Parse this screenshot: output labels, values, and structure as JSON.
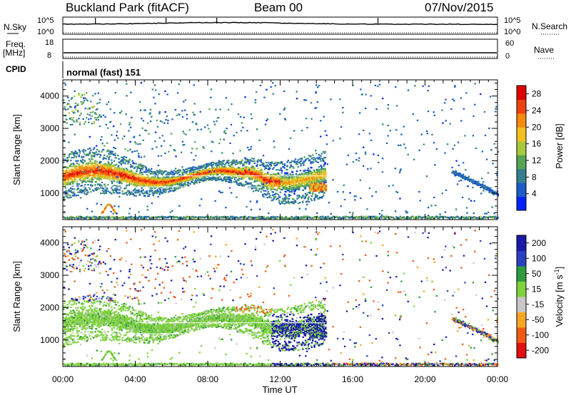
{
  "header": {
    "station": "Buckland Park (fitACF)",
    "beam": "Beam 00",
    "date": "07/Nov/2015"
  },
  "strips": {
    "nsky_label": "N.Sky",
    "nsearch_label": "N.Search",
    "noise_ticks": [
      "10^5",
      "10^0"
    ],
    "freq_label": "Freq.",
    "freq_unit": "[MHz]",
    "freq_ticks": [
      "18",
      "8"
    ],
    "nave_label": "Nave",
    "nave_ticks": [
      "60",
      "0"
    ],
    "cpid_label": "CPID",
    "cpid_text": "normal (fast) 151"
  },
  "colors": {
    "power": [
      "#0022ff",
      "#1c5cc8",
      "#347f8e",
      "#55a454",
      "#a8c83e",
      "#f4c020",
      "#f48a10",
      "#ee4010",
      "#dd0000"
    ],
    "velocity": [
      "#e01010",
      "#f05a14",
      "#f5a623",
      "#c8c8c8",
      "#7ed23c",
      "#2f9a3e",
      "#2a40c0",
      "#1a1aa8"
    ]
  },
  "chart_data": [
    {
      "type": "heatmap",
      "title": "",
      "ylabel": "Slant Range [km]",
      "xlabel": "",
      "ylim": [
        180,
        4500
      ],
      "yticks": [
        "1000",
        "2000",
        "3000",
        "4000"
      ],
      "colorbar": {
        "label": "Power [dB]",
        "ticks": [
          "4",
          "8",
          "12",
          "16",
          "20",
          "24",
          "28"
        ],
        "range": [
          0,
          30
        ]
      },
      "bands": [
        {
          "x": [
            0.0,
            14.5
          ],
          "y_center": [
            1200,
            1800
          ],
          "level": "high"
        },
        {
          "x": [
            21.5,
            24.0
          ],
          "y_center": [
            900,
            1600
          ],
          "level": "low"
        }
      ]
    },
    {
      "type": "heatmap",
      "title": "",
      "ylabel": "Slant Range [km]",
      "xlabel": "Time UT",
      "ylim": [
        180,
        4500
      ],
      "yticks": [
        "1000",
        "2000",
        "3000",
        "4000"
      ],
      "xticks": [
        "00:00",
        "04:00",
        "08:00",
        "12:00",
        "16:00",
        "20:00",
        "00:00"
      ],
      "colorbar": {
        "label": "Velocity [m s^-1]",
        "ticks": [
          "200",
          "100",
          "50",
          "15",
          "-15",
          "-50",
          "-100",
          "-200"
        ],
        "range": [
          -250,
          250
        ]
      }
    }
  ]
}
